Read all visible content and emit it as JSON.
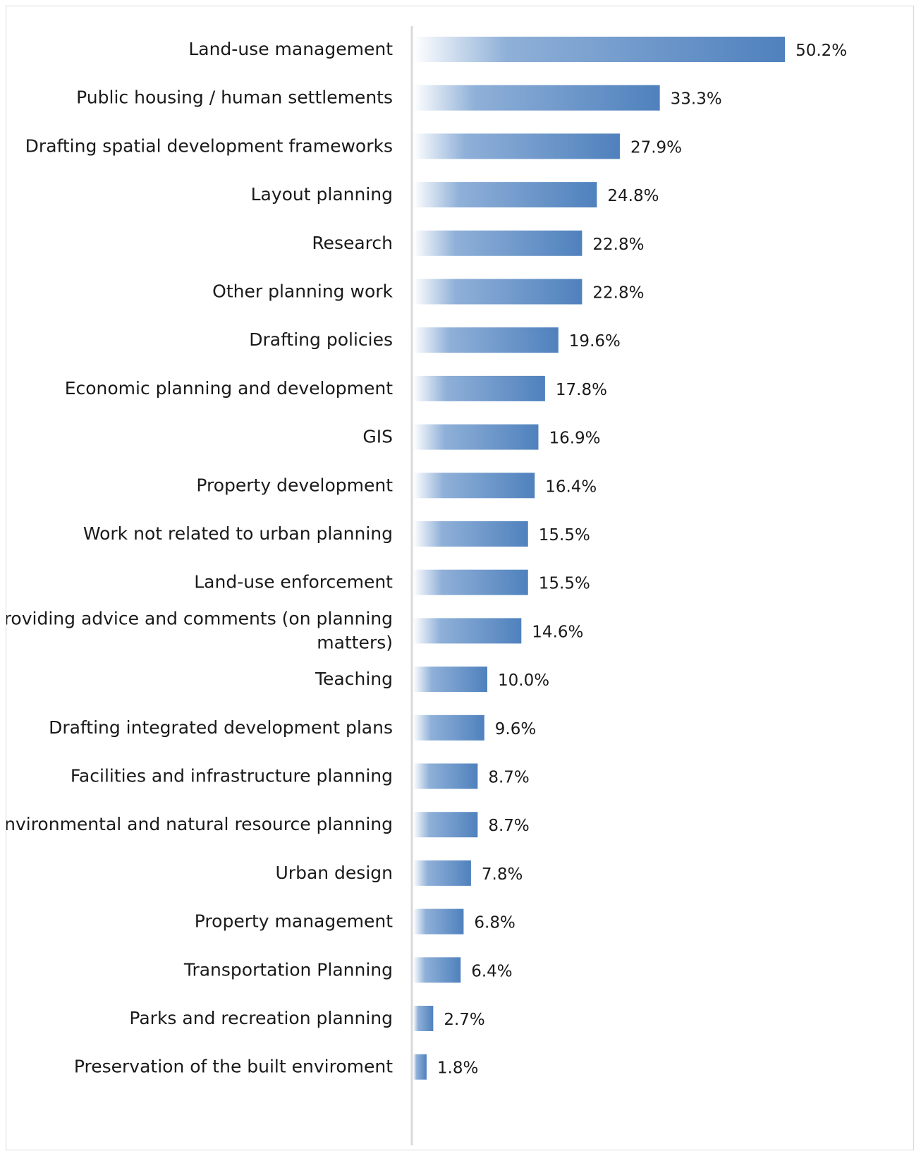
{
  "chart_data": {
    "type": "bar",
    "orientation": "horizontal",
    "categories": [
      "Land-use management",
      "Public housing / human settlements",
      "Drafting spatial development frameworks",
      "Layout planning",
      "Research",
      "Other planning work",
      "Drafting policies",
      "Economic planning and development",
      "GIS",
      "Property development",
      "Work not related to urban planning",
      "Land-use enforcement",
      "Providing advice and comments (on planning matters)",
      "Teaching",
      "Drafting integrated development plans",
      "Facilities and infrastructure planning",
      "Environmental and natural resource planning",
      "Urban design",
      "Property management",
      "Transportation Planning",
      "Parks and recreation planning",
      "Preservation of the built enviroment"
    ],
    "values": [
      50.2,
      33.3,
      27.9,
      24.8,
      22.8,
      22.8,
      19.6,
      17.8,
      16.9,
      16.4,
      15.5,
      15.5,
      14.6,
      10.0,
      9.6,
      8.7,
      8.7,
      7.8,
      6.8,
      6.4,
      2.7,
      1.8
    ],
    "value_labels": [
      "50.2%",
      "33.3%",
      "27.9%",
      "24.8%",
      "22.8%",
      "22.8%",
      "19.6%",
      "17.8%",
      "16.9%",
      "16.4%",
      "15.5%",
      "15.5%",
      "14.6%",
      "10.0%",
      "9.6%",
      "8.7%",
      "8.7%",
      "7.8%",
      "6.8%",
      "6.4%",
      "2.7%",
      "1.8%"
    ],
    "title": "",
    "xlabel": "",
    "ylabel": "",
    "xlim": [
      0,
      52
    ],
    "grid": false,
    "legend": "none",
    "bar_color": "#4f81bd",
    "bar_fade_color": "#ffffff",
    "axis_color": "#d9d9d9"
  }
}
